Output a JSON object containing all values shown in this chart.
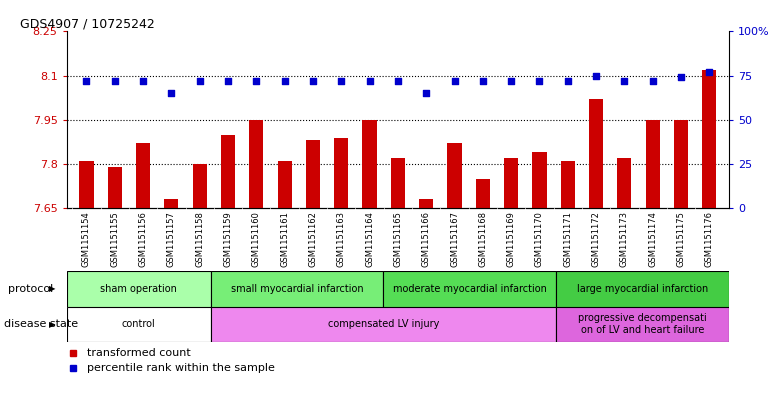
{
  "title": "GDS4907 / 10725242",
  "samples": [
    "GSM1151154",
    "GSM1151155",
    "GSM1151156",
    "GSM1151157",
    "GSM1151158",
    "GSM1151159",
    "GSM1151160",
    "GSM1151161",
    "GSM1151162",
    "GSM1151163",
    "GSM1151164",
    "GSM1151165",
    "GSM1151166",
    "GSM1151167",
    "GSM1151168",
    "GSM1151169",
    "GSM1151170",
    "GSM1151171",
    "GSM1151172",
    "GSM1151173",
    "GSM1151174",
    "GSM1151175",
    "GSM1151176"
  ],
  "bar_values": [
    7.81,
    7.79,
    7.87,
    7.68,
    7.8,
    7.9,
    7.95,
    7.81,
    7.88,
    7.89,
    7.95,
    7.82,
    7.68,
    7.87,
    7.75,
    7.82,
    7.84,
    7.81,
    8.02,
    7.82,
    7.95,
    7.95,
    8.12
  ],
  "percentile_values": [
    72,
    72,
    72,
    65,
    72,
    72,
    72,
    72,
    72,
    72,
    72,
    72,
    65,
    72,
    72,
    72,
    72,
    72,
    75,
    72,
    72,
    74,
    77
  ],
  "bar_color": "#cc0000",
  "dot_color": "#0000cc",
  "ylim_left": [
    7.65,
    8.25
  ],
  "ylim_right": [
    0,
    100
  ],
  "yticks_left": [
    7.65,
    7.8,
    7.95,
    8.1,
    8.25
  ],
  "yticks_right": [
    0,
    25,
    50,
    75,
    100
  ],
  "ytick_labels_left": [
    "7.65",
    "7.8",
    "7.95",
    "8.1",
    "8.25"
  ],
  "ytick_labels_right": [
    "0",
    "25",
    "50",
    "75",
    "100%"
  ],
  "hlines": [
    7.8,
    7.95,
    8.1
  ],
  "protocol_groups": [
    {
      "label": "sham operation",
      "start": 0,
      "end": 5,
      "color": "#aaffaa"
    },
    {
      "label": "small myocardial infarction",
      "start": 5,
      "end": 11,
      "color": "#77ee77"
    },
    {
      "label": "moderate myocardial infarction",
      "start": 11,
      "end": 17,
      "color": "#55dd55"
    },
    {
      "label": "large myocardial infarction",
      "start": 17,
      "end": 23,
      "color": "#44cc44"
    }
  ],
  "disease_groups": [
    {
      "label": "control",
      "start": 0,
      "end": 5,
      "color": "#ffffff"
    },
    {
      "label": "compensated LV injury",
      "start": 5,
      "end": 17,
      "color": "#ee88ee"
    },
    {
      "label": "progressive decompensati\non of LV and heart failure",
      "start": 17,
      "end": 23,
      "color": "#dd66dd"
    }
  ],
  "legend_bar_label": "transformed count",
  "legend_dot_label": "percentile rank within the sample",
  "protocol_label": "protocol",
  "disease_label": "disease state",
  "ax_label_color_left": "#cc0000",
  "ax_label_color_right": "#0000cc",
  "xtick_area_color": "#cccccc",
  "main_bg_color": "#ffffff"
}
